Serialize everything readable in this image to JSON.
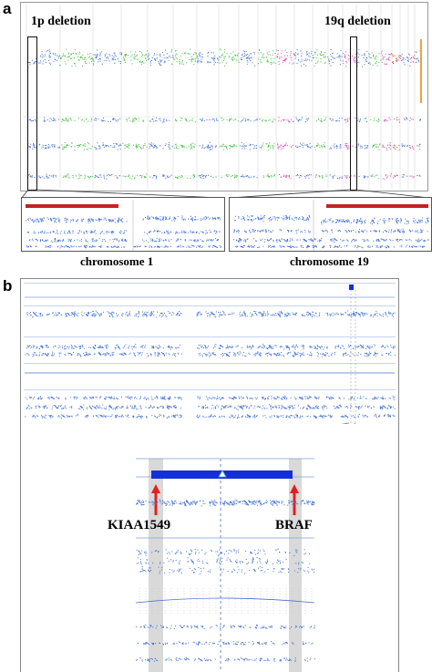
{
  "panel_a": {
    "letter": "a",
    "deletion_left": "1p deletion",
    "deletion_right": "19q deletion",
    "zoom_left_label": "chromosome 1",
    "zoom_right_label": "chromosome 19"
  },
  "panel_b": {
    "letter": "b",
    "gene_left": "KIAA1549",
    "gene_right": "BRAF"
  },
  "colors": {
    "track_blue": "#3c6fd6",
    "track_green": "#3fbf3f",
    "track_magenta": "#d43fb3",
    "track_red": "#d03030",
    "deletion_bar": "#c42222",
    "region_bar": "#1330d8",
    "arrow_red": "#e02020"
  }
}
